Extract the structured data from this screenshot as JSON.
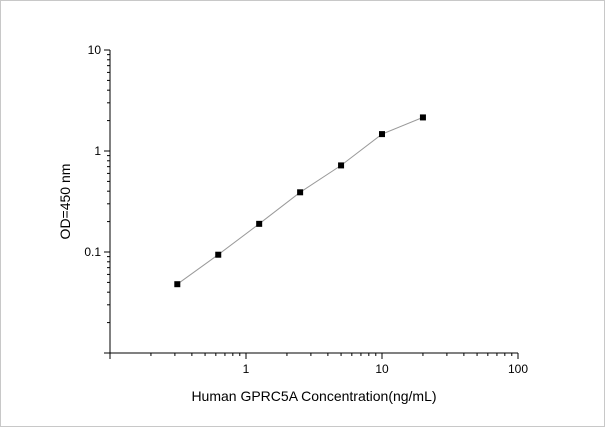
{
  "chart_data": {
    "type": "scatter",
    "title": "",
    "xlabel": "Human GPRC5A Concentration(ng/mL)",
    "ylabel": "OD=450 nm",
    "x_scale": "log",
    "y_scale": "log",
    "xlim": [
      0.1,
      100
    ],
    "ylim": [
      0.01,
      10
    ],
    "x_ticks": [
      {
        "value": 1,
        "label": "1"
      },
      {
        "value": 10,
        "label": "10"
      },
      {
        "value": 100,
        "label": "100"
      }
    ],
    "y_ticks": [
      {
        "value": 0.1,
        "label": "0.1"
      },
      {
        "value": 1,
        "label": "1"
      },
      {
        "value": 10,
        "label": "10"
      }
    ],
    "grid": false,
    "series": [
      {
        "x": [
          0.3125,
          0.625,
          1.25,
          2.5,
          5,
          10,
          20
        ],
        "y": [
          0.048,
          0.094,
          0.19,
          0.39,
          0.72,
          1.47,
          2.15
        ],
        "marker": "square",
        "line": true,
        "color": "#000000",
        "line_color": "#9a9a9a"
      }
    ]
  }
}
